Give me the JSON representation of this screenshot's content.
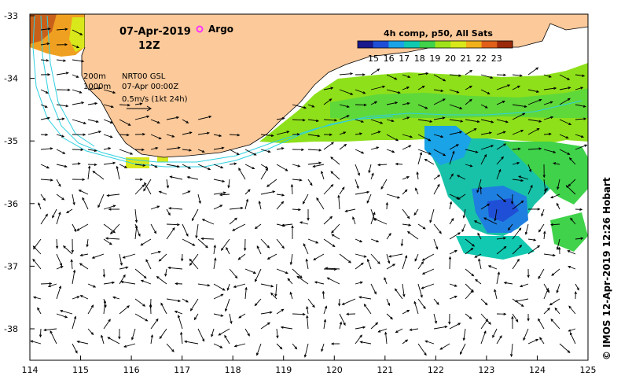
{
  "header": {
    "date": "07-Apr-2019",
    "time": "12Z",
    "argo_label": "Argo"
  },
  "legend": {
    "title": "4h comp, p50, All Sats",
    "ticks": [
      "15",
      "16",
      "17",
      "18",
      "19",
      "20",
      "21",
      "22",
      "23"
    ],
    "colors": [
      "#1a1a8c",
      "#1f4fd6",
      "#1aa3e6",
      "#10c9b0",
      "#3fd24a",
      "#9fe21a",
      "#d9e81a",
      "#f2b01a",
      "#e0601a",
      "#9a2a0a"
    ]
  },
  "info": {
    "contour1": "200m",
    "contour2": "1000m",
    "source": "NRT00 GSL",
    "stamp": "07-Apr 00:00Z",
    "scale": "0.5m/s (1kt 24h)"
  },
  "axes": {
    "x_ticks": [
      "114",
      "115",
      "116",
      "117",
      "118",
      "119",
      "120",
      "121",
      "122",
      "123",
      "124",
      "125"
    ],
    "y_ticks": [
      "-33",
      "-34",
      "-35",
      "-36",
      "-37",
      "-38"
    ]
  },
  "credit": "© IMOS 12-Apr-2019 12:26 Hobart",
  "colors": {
    "land": "#fbc99a",
    "contour": "#2fd0e0",
    "arrow": "#000000",
    "argo": "#ff33ff"
  }
}
